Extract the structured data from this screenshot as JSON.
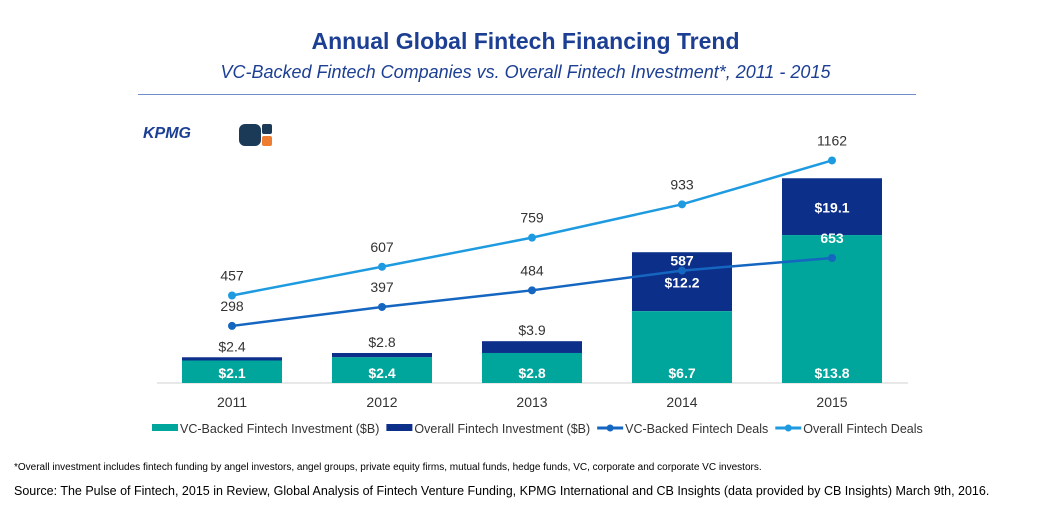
{
  "title": "Annual Global Fintech Financing Trend",
  "subtitle": "VC-Backed Fintech Companies vs. Overall Fintech Investment*, 2011 - 2015",
  "logos": [
    "KPMG",
    "CB Insights"
  ],
  "footnote": "*Overall investment includes fintech funding by angel investors, angel groups, private equity firms, mutual funds, hedge funds, VC, corporate and corporate VC investors.",
  "source": "Source: The Pulse of Fintech, 2015 in Review, Global Analysis of Fintech Venture Funding, KPMG International and CB Insights (data provided by CB Insights) March 9th, 2016.",
  "chart_data": {
    "type": "bar",
    "categories": [
      "2011",
      "2012",
      "2013",
      "2014",
      "2015"
    ],
    "series": [
      {
        "name": "VC-Backed Fintech Investment  ($B)",
        "kind": "bar",
        "color": "#00a59b",
        "values": [
          2.1,
          2.4,
          2.8,
          6.7,
          13.8
        ],
        "labels": [
          "$2.1",
          "$2.4",
          "$2.8",
          "$6.7",
          "$13.8"
        ]
      },
      {
        "name": "Overall Fintech Investment ($B)",
        "kind": "bar-total",
        "color": "#0c2f8a",
        "values": [
          2.4,
          2.8,
          3.9,
          12.2,
          19.1
        ],
        "labels": [
          "$2.4",
          "$2.8",
          "$3.9",
          "$12.2",
          "$19.1"
        ]
      },
      {
        "name": "VC-Backed Fintech Deals",
        "kind": "line",
        "color": "#1466c0",
        "values": [
          298,
          397,
          484,
          587,
          653
        ]
      },
      {
        "name": "Overall Fintech Deals",
        "kind": "line",
        "color": "#1e9be0",
        "values": [
          457,
          607,
          759,
          933,
          1162
        ]
      }
    ]
  }
}
